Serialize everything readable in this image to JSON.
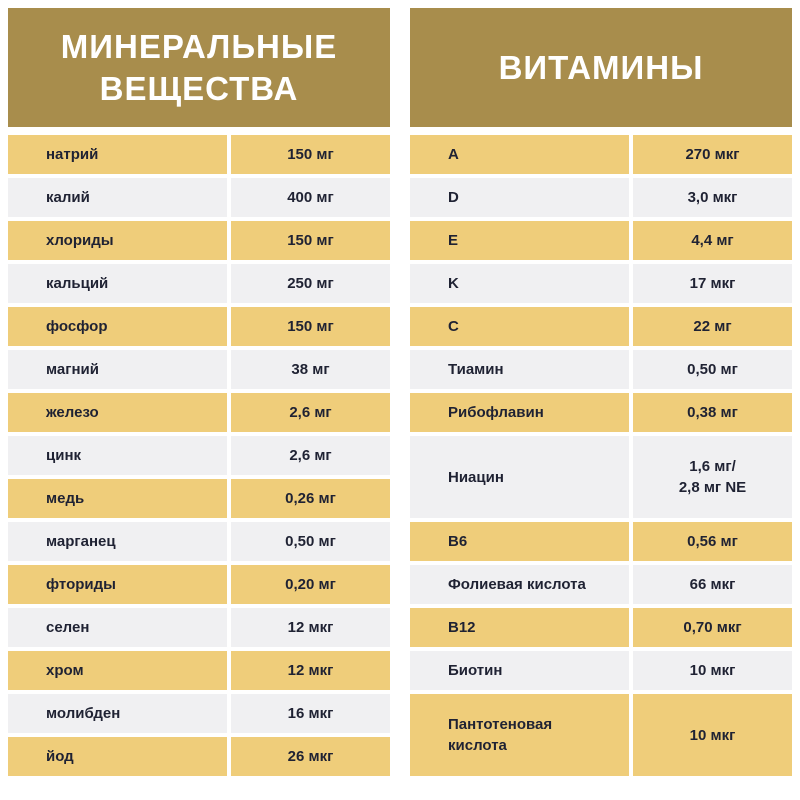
{
  "minerals": {
    "title": "МИНЕРАЛЬНЫЕ\nВЕЩЕСТВА",
    "rows": [
      {
        "name": "натрий",
        "value": "150 мг"
      },
      {
        "name": "калий",
        "value": "400 мг"
      },
      {
        "name": "хлориды",
        "value": "150 мг"
      },
      {
        "name": "кальций",
        "value": "250 мг"
      },
      {
        "name": "фосфор",
        "value": "150 мг"
      },
      {
        "name": "магний",
        "value": "38 мг"
      },
      {
        "name": "железо",
        "value": "2,6 мг"
      },
      {
        "name": "цинк",
        "value": "2,6 мг"
      },
      {
        "name": "медь",
        "value": "0,26 мг"
      },
      {
        "name": "марганец",
        "value": "0,50 мг"
      },
      {
        "name": "фториды",
        "value": "0,20 мг"
      },
      {
        "name": "селен",
        "value": "12 мкг"
      },
      {
        "name": "хром",
        "value": "12 мкг"
      },
      {
        "name": "молибден",
        "value": "16 мкг"
      },
      {
        "name": "йод",
        "value": "26 мкг"
      }
    ]
  },
  "vitamins": {
    "title": "ВИТАМИНЫ",
    "rows": [
      {
        "name": "A",
        "value": "270 мкг"
      },
      {
        "name": "D",
        "value": "3,0 мкг"
      },
      {
        "name": "E",
        "value": "4,4 мг"
      },
      {
        "name": "K",
        "value": "17 мкг"
      },
      {
        "name": "C",
        "value": "22 мг"
      },
      {
        "name": "Тиамин",
        "value": "0,50 мг"
      },
      {
        "name": "Рибофлавин",
        "value": "0,38 мг"
      },
      {
        "name": "Ниацин",
        "value": "1,6 мг/\n2,8 мг NE",
        "double": true
      },
      {
        "name": "B6",
        "value": "0,56 мг"
      },
      {
        "name": "Фолиевая кислота",
        "value": "66 мкг"
      },
      {
        "name": "B12",
        "value": "0,70 мкг"
      },
      {
        "name": "Биотин",
        "value": "10 мкг"
      },
      {
        "name": "Пантотеновая\nкислота",
        "value": "10 мкг",
        "double": true
      }
    ]
  },
  "colors": {
    "header": "#a88d4c",
    "row_yellow": "#efcd7a",
    "row_grey": "#f0f0f2",
    "text": "#1f2233"
  }
}
